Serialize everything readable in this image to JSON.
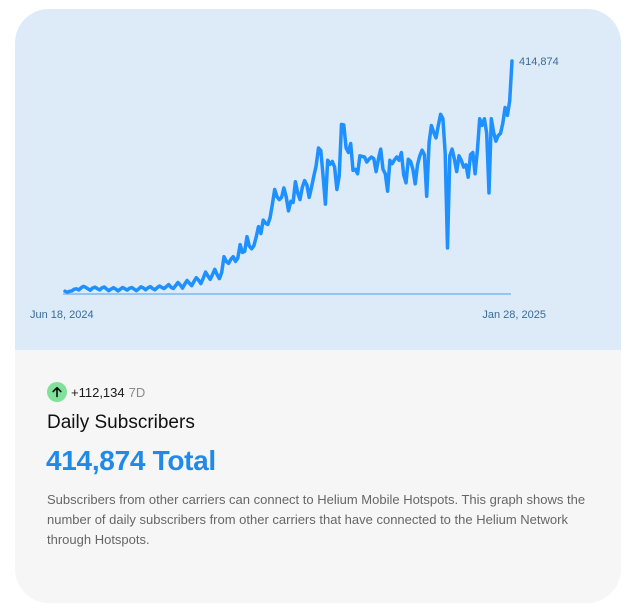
{
  "chart_data": {
    "type": "line",
    "x_start_label": "Jun 18, 2024",
    "x_end_label": "Jan 28, 2025",
    "end_value_label": "414,874",
    "line_color": "#1e90ff",
    "series": [
      {
        "values": [
          5000,
          3200,
          4800,
          5500,
          8500,
          9200,
          7100,
          11000,
          13500,
          12000,
          9000,
          6800,
          10500,
          12200,
          9600,
          7300,
          10800,
          12500,
          9100,
          5800,
          8800,
          11200,
          8900,
          5600,
          8600,
          11600,
          9400,
          6900,
          10200,
          11500,
          8700,
          5800,
          9200,
          12800,
          10800,
          7400,
          10800,
          13200,
          9800,
          7400,
          11200,
          14200,
          11800,
          9800,
          13200,
          16800,
          12000,
          9800,
          14800,
          20500,
          16200,
          10500,
          17800,
          24000,
          19200,
          14800,
          22500,
          29000,
          24500,
          18500,
          28000,
          39000,
          32000,
          26000,
          34500,
          44000,
          34500,
          27500,
          38500,
          66500,
          58000,
          54500,
          62000,
          66500,
          58000,
          64000,
          88000,
          74000,
          76000,
          102000,
          85500,
          80500,
          86000,
          101500,
          120000,
          107500,
          131500,
          126000,
          124000,
          136000,
          160000,
          186000,
          173000,
          168000,
          172000,
          189000,
          173000,
          148000,
          165000,
          163000,
          200000,
          180000,
          168000,
          190000,
          202000,
          194000,
          172000,
          190000,
          210000,
          228000,
          260000,
          255500,
          210000,
          160000,
          238000,
          231000,
          236000,
          226000,
          186000,
          210000,
          302000,
          301000,
          260000,
          252000,
          268000,
          220000,
          222000,
          214000,
          246000,
          245000,
          244000,
          235000,
          240000,
          244000,
          241000,
          218000,
          240000,
          258000,
          222000,
          214000,
          183000,
          238000,
          232000,
          239000,
          244000,
          238000,
          252000,
          212000,
          198000,
          240000,
          236000,
          222000,
          196000,
          230000,
          246000,
          256000,
          248000,
          174000,
          270000,
          300000,
          288000,
          278000,
          300000,
          320000,
          312000,
          250000,
          82000,
          246000,
          258000,
          240000,
          218000,
          246000,
          238000,
          226000,
          230000,
          208000,
          248000,
          252000,
          214000,
          256000,
          312000,
          300000,
          312000,
          286000,
          180000,
          312000,
          288000,
          272000,
          282000,
          286000,
          304000,
          332000,
          318000,
          344000,
          414874
        ]
      }
    ]
  },
  "stats": {
    "change_value": "+112,134",
    "change_period": "7D",
    "title": "Daily Subscribers",
    "total": "414,874 Total",
    "description": "Subscribers from other carriers can connect to Helium Mobile Hotspots. This graph shows the number of daily subscribers from other carriers that have connected to the Helium Network through Hotspots."
  },
  "icons": {
    "change": "arrow-up-icon"
  },
  "colors": {
    "accent": "#1f8ae8",
    "badge": "#7fe19a",
    "chart_bg": "#ddebf8"
  }
}
